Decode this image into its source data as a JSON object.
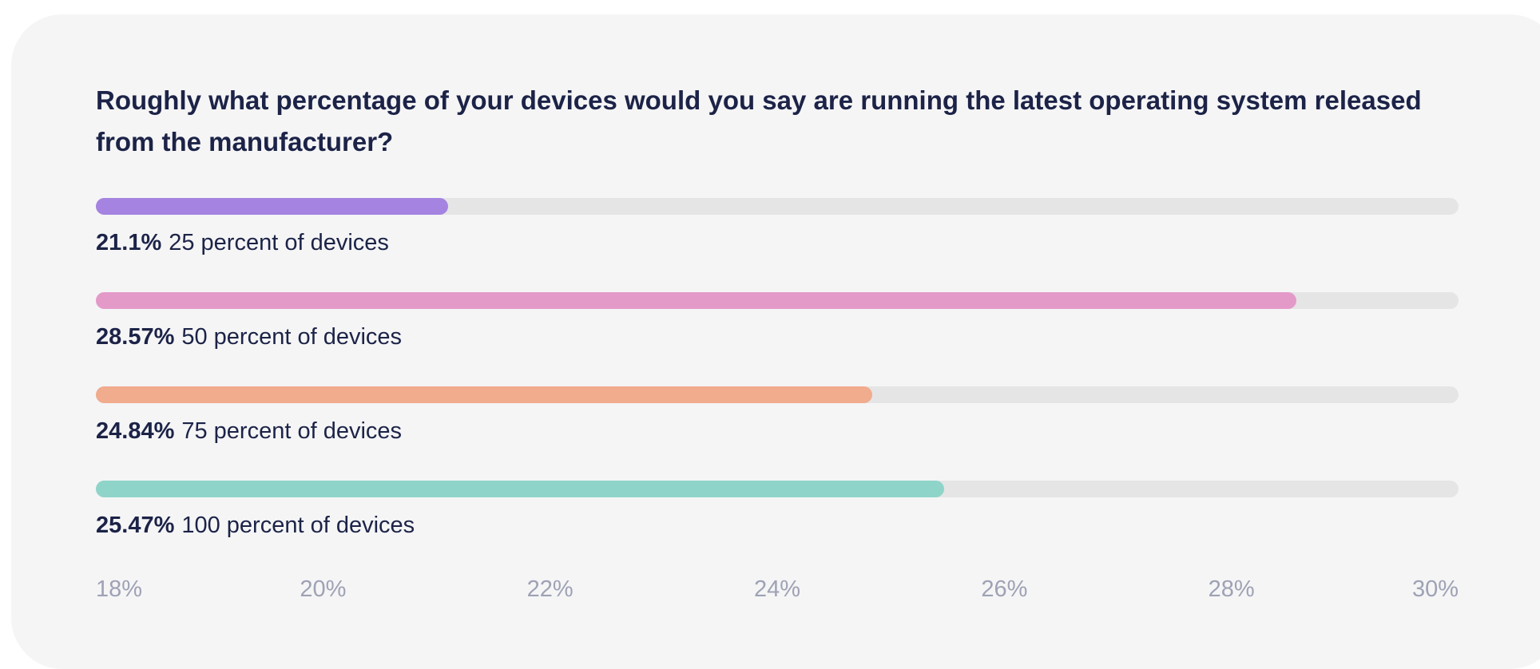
{
  "colors": {
    "card_background": "#f5f5f6",
    "track": "#e5e5e6",
    "title_text": "#1c2347",
    "axis_text": "#9ea2b4"
  },
  "chart_data": {
    "type": "bar",
    "orientation": "horizontal",
    "title": "Roughly what percentage of your devices would you say are running the latest operating system released from the manufacturer?",
    "xlabel": "",
    "ylabel": "",
    "xlim": [
      18,
      30
    ],
    "grid": false,
    "legend": "none",
    "bars": [
      {
        "value": 21.1,
        "value_label": "21.1%",
        "label": "25 percent of devices",
        "color": "#a583e0"
      },
      {
        "value": 28.57,
        "value_label": "28.57%",
        "label": "50 percent of devices",
        "color": "#e49ac8"
      },
      {
        "value": 24.84,
        "value_label": "24.84%",
        "label": "75 percent of devices",
        "color": "#f1ab8d"
      },
      {
        "value": 25.47,
        "value_label": "25.47%",
        "label": "100 percent of devices",
        "color": "#8fd4c9"
      }
    ],
    "ticks": [
      {
        "value": 18,
        "label": "18%"
      },
      {
        "value": 20,
        "label": "20%"
      },
      {
        "value": 22,
        "label": "22%"
      },
      {
        "value": 24,
        "label": "24%"
      },
      {
        "value": 26,
        "label": "26%"
      },
      {
        "value": 28,
        "label": "28%"
      },
      {
        "value": 30,
        "label": "30%"
      }
    ]
  }
}
